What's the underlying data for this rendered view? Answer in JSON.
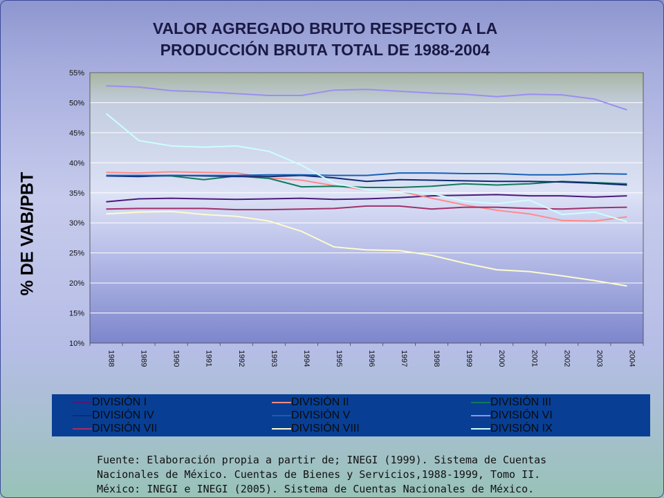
{
  "chart_data": {
    "type": "line",
    "title_lines": [
      "VALOR AGREGADO BRUTO RESPECTO A LA",
      "PRODUCCIÓN BRUTA TOTAL DE 1988-2004"
    ],
    "ylabel": "% DE VAB/PBT",
    "xlabel": "",
    "x": [
      "1988",
      "1989",
      "1990",
      "1991",
      "1992",
      "1993",
      "1994",
      "1995",
      "1996",
      "1997",
      "1998",
      "1999",
      "2000",
      "2001",
      "2002",
      "2003",
      "2004"
    ],
    "ylim": [
      10,
      55
    ],
    "yticks": [
      10,
      15,
      20,
      25,
      30,
      35,
      40,
      45,
      50,
      55
    ],
    "ytick_suffix": "%",
    "grid": true,
    "legend_position": "bottom",
    "series": [
      {
        "name": "DIVISIÓN I",
        "color": "#4a1a7a",
        "values": [
          33.5,
          34.0,
          34.1,
          34.0,
          33.9,
          34.0,
          34.1,
          33.9,
          34.0,
          34.2,
          34.5,
          34.6,
          34.7,
          34.5,
          34.5,
          34.3,
          34.5
        ]
      },
      {
        "name": "DIVISIÓN II",
        "color": "#ff8a8a",
        "values": [
          38.4,
          38.3,
          38.5,
          38.4,
          38.3,
          37.5,
          37.1,
          36.2,
          35.5,
          35.3,
          34.1,
          33.0,
          32.1,
          31.5,
          30.4,
          30.3,
          31.0
        ]
      },
      {
        "name": "DIVISIÓN III",
        "color": "#0f7a5a",
        "values": [
          37.9,
          37.8,
          37.8,
          37.2,
          37.8,
          37.4,
          36.0,
          36.1,
          35.9,
          35.9,
          36.1,
          36.5,
          36.3,
          36.5,
          36.9,
          36.7,
          36.5
        ]
      },
      {
        "name": "DIVISIÓN IV",
        "color": "#0f2a70",
        "values": [
          37.8,
          37.7,
          37.9,
          37.8,
          37.7,
          37.7,
          37.9,
          37.5,
          36.9,
          37.2,
          37.1,
          37.0,
          36.9,
          36.9,
          36.8,
          36.6,
          36.3
        ]
      },
      {
        "name": "DIVISIÓN V",
        "color": "#1660b8",
        "values": [
          37.9,
          37.9,
          37.9,
          37.9,
          37.9,
          38.0,
          38.0,
          37.9,
          37.9,
          38.3,
          38.3,
          38.2,
          38.2,
          38.0,
          38.0,
          38.2,
          38.1
        ]
      },
      {
        "name": "DIVISIÓN VI",
        "color": "#9a8ef0",
        "values": [
          52.8,
          52.6,
          52.0,
          51.8,
          51.5,
          51.2,
          51.2,
          52.1,
          52.2,
          51.9,
          51.6,
          51.4,
          51.0,
          51.4,
          51.3,
          50.6,
          48.8
        ]
      },
      {
        "name": "DIVISIÓN VII",
        "color": "#a0306a",
        "values": [
          32.3,
          32.4,
          32.4,
          32.4,
          32.2,
          32.2,
          32.3,
          32.4,
          32.8,
          32.8,
          32.3,
          32.6,
          32.6,
          32.4,
          32.3,
          32.5,
          32.6
        ]
      },
      {
        "name": "DIVISIÓN VIII",
        "color": "#fffccc",
        "values": [
          31.5,
          31.8,
          31.9,
          31.4,
          31.1,
          30.3,
          28.6,
          26.0,
          25.5,
          25.4,
          24.6,
          23.3,
          22.2,
          21.9,
          21.2,
          20.4,
          19.5
        ]
      },
      {
        "name": "DIVISIÓN IX",
        "color": "#ccffff",
        "values": [
          48.2,
          43.7,
          42.8,
          42.6,
          42.8,
          41.9,
          39.6,
          36.6,
          35.5,
          35.2,
          34.9,
          33.6,
          33.2,
          33.8,
          31.4,
          31.8,
          30.2
        ]
      }
    ]
  },
  "source_lines": [
    "Fuente: Elaboración propia a partir de; INEGI (1999). Sistema de Cuentas",
    "Nacionales de México. Cuentas de Bienes y Servicios,1988-1999, Tomo II.",
    "México: INEGI e INEGI (2005). Sistema de Cuentas Nacionales de México."
  ]
}
